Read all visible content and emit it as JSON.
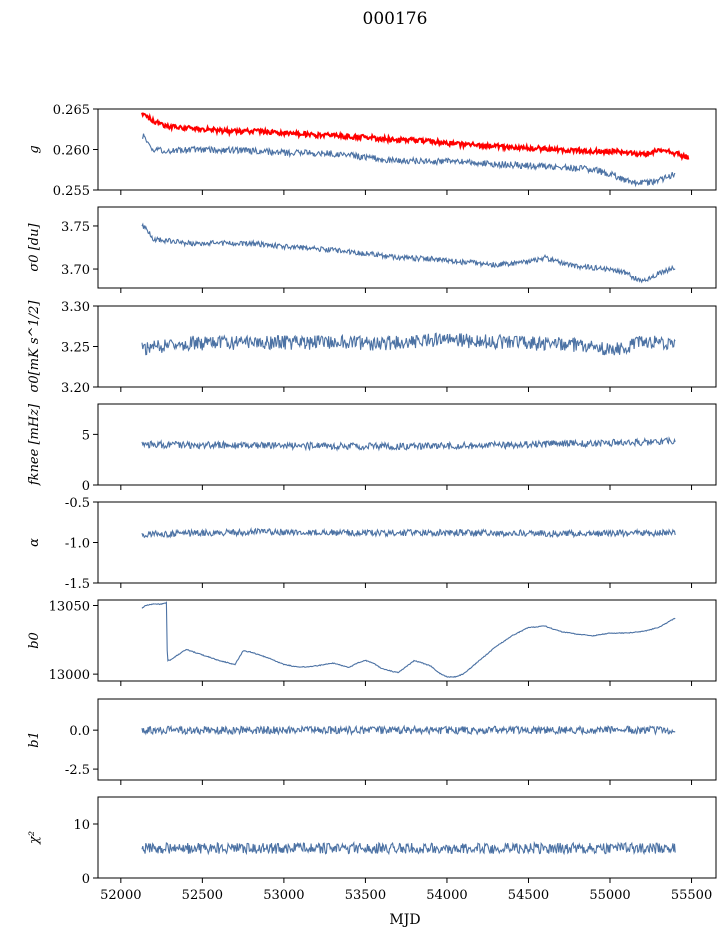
{
  "title": "000176",
  "xlabel": "MJD",
  "x_ticks": [
    "52000",
    "52500",
    "53000",
    "53500",
    "54000",
    "54500",
    "55000",
    "55500"
  ],
  "colors": {
    "series": "#4c72a4",
    "highlight": "#ff0000",
    "axis": "#000000"
  },
  "chart_data": [
    {
      "type": "line",
      "ylabel": "g",
      "ylim": [
        0.255,
        0.265
      ],
      "xlim": [
        51860,
        55650
      ],
      "yticks": [
        "0.255",
        "0.260",
        "0.265"
      ],
      "ytick_values": [
        0.255,
        0.26,
        0.265
      ],
      "series": [
        {
          "color": "#4c72a4",
          "x": [
            52130,
            52200,
            52300,
            52500,
            52700,
            53000,
            53300,
            53600,
            53900,
            54100,
            54300,
            54500,
            54700,
            54900,
            55000,
            55100,
            55200,
            55300,
            55400
          ],
          "y": [
            0.2618,
            0.26,
            0.2598,
            0.26,
            0.2599,
            0.2596,
            0.2595,
            0.2588,
            0.2585,
            0.2585,
            0.2582,
            0.258,
            0.2578,
            0.2575,
            0.257,
            0.2562,
            0.2558,
            0.2562,
            0.257
          ],
          "noise": 0.0004
        },
        {
          "color": "#ff0000",
          "x": [
            52130,
            52200,
            52300,
            52500,
            52700,
            52800,
            53000,
            53300,
            53500,
            53700,
            53900,
            54100,
            54300,
            54500,
            54700,
            54900,
            55100,
            55200,
            55300,
            55400,
            55480
          ],
          "y": [
            0.2645,
            0.2635,
            0.2628,
            0.2625,
            0.2622,
            0.2623,
            0.262,
            0.2617,
            0.2615,
            0.2612,
            0.261,
            0.2606,
            0.2604,
            0.2602,
            0.26,
            0.2598,
            0.2597,
            0.2593,
            0.26,
            0.2595,
            0.259
          ],
          "noise": 0.0003
        }
      ]
    },
    {
      "type": "line",
      "ylabel": "σ0 [du]",
      "ylim": [
        3.678,
        3.772
      ],
      "xlim": [
        51860,
        55650
      ],
      "yticks": [
        "3.70",
        "3.75"
      ],
      "ytick_values": [
        3.7,
        3.75
      ],
      "series": [
        {
          "color": "#4c72a4",
          "x": [
            52130,
            52200,
            52400,
            52800,
            53000,
            53300,
            53500,
            53700,
            53900,
            54100,
            54300,
            54500,
            54600,
            54800,
            55000,
            55100,
            55200,
            55300,
            55400
          ],
          "y": [
            3.752,
            3.735,
            3.73,
            3.73,
            3.726,
            3.722,
            3.718,
            3.713,
            3.712,
            3.708,
            3.705,
            3.708,
            3.713,
            3.703,
            3.7,
            3.695,
            3.685,
            3.695,
            3.702
          ],
          "noise": 0.003
        }
      ]
    },
    {
      "type": "line",
      "ylabel": "σ0[mK s^1/2]",
      "ylim": [
        3.2,
        3.3
      ],
      "xlim": [
        51860,
        55650
      ],
      "yticks": [
        "3.20",
        "3.25",
        "3.30"
      ],
      "ytick_values": [
        3.2,
        3.25,
        3.3
      ],
      "series": [
        {
          "color": "#4c72a4",
          "x": [
            52130,
            52400,
            52800,
            53200,
            53600,
            54000,
            54400,
            54800,
            55000,
            55200,
            55400
          ],
          "y": [
            3.248,
            3.254,
            3.255,
            3.255,
            3.254,
            3.258,
            3.255,
            3.252,
            3.245,
            3.255,
            3.255
          ],
          "noise": 0.009
        }
      ]
    },
    {
      "type": "line",
      "ylabel": "fknee [mHz]",
      "ylim": [
        0,
        8
      ],
      "xlim": [
        51860,
        55650
      ],
      "yticks": [
        "0",
        "5"
      ],
      "ytick_values": [
        0,
        5
      ],
      "series": [
        {
          "color": "#4c72a4",
          "x": [
            52130,
            52800,
            53500,
            54200,
            54800,
            55400
          ],
          "y": [
            4.0,
            3.9,
            3.8,
            3.9,
            4.1,
            4.3
          ],
          "noise": 0.35
        }
      ]
    },
    {
      "type": "line",
      "ylabel": "α",
      "ylim": [
        -1.5,
        -0.5
      ],
      "xlim": [
        51860,
        55650
      ],
      "yticks": [
        "-1.5",
        "-1.0",
        "-0.5"
      ],
      "ytick_values": [
        -1.5,
        -1.0,
        -0.5
      ],
      "series": [
        {
          "color": "#4c72a4",
          "x": [
            52130,
            52800,
            53500,
            54200,
            54800,
            55400
          ],
          "y": [
            -0.9,
            -0.87,
            -0.88,
            -0.88,
            -0.89,
            -0.88
          ],
          "noise": 0.04
        }
      ]
    },
    {
      "type": "line",
      "ylabel": "b0",
      "ylim": [
        12995,
        13054
      ],
      "xlim": [
        51860,
        55650
      ],
      "yticks": [
        "13000",
        "13050"
      ],
      "ytick_values": [
        13000,
        13050
      ],
      "series": [
        {
          "color": "#4c72a4",
          "x": [
            52130,
            52150,
            52200,
            52250,
            52280,
            52285,
            52300,
            52350,
            52400,
            52500,
            52600,
            52700,
            52750,
            52800,
            52900,
            53000,
            53100,
            53200,
            53300,
            53400,
            53450,
            53500,
            53550,
            53600,
            53700,
            53800,
            53900,
            53950,
            54000,
            54050,
            54100,
            54200,
            54300,
            54400,
            54500,
            54600,
            54700,
            54800,
            54900,
            55000,
            55100,
            55200,
            55300,
            55400
          ],
          "y": [
            13048,
            13050,
            13051,
            13051,
            13052,
            13010,
            13010,
            13014,
            13018,
            13014,
            13010,
            13007,
            13017,
            13016,
            13012,
            13007,
            13005,
            13006,
            13008,
            13005,
            13008,
            13010,
            13008,
            13004,
            13001,
            13010,
            13006,
            13001,
            12998,
            12998,
            13000,
            13010,
            13020,
            13028,
            13034,
            13035,
            13031,
            13029,
            13028,
            13030,
            13030,
            13031,
            13034,
            13041
          ],
          "noise": 0.3
        }
      ]
    },
    {
      "type": "line",
      "ylabel": "b1",
      "ylim": [
        -3.2,
        2.0
      ],
      "xlim": [
        51860,
        55650
      ],
      "yticks": [
        "-2.5",
        "0.0"
      ],
      "ytick_values": [
        -2.5,
        0.0
      ],
      "series": [
        {
          "color": "#4c72a4",
          "x": [
            52130,
            52800,
            53500,
            54200,
            54800,
            55400
          ],
          "y": [
            0.0,
            0.0,
            0.0,
            0.0,
            0.0,
            0.0
          ],
          "noise": 0.25
        }
      ]
    },
    {
      "type": "line",
      "ylabel": "χ²",
      "ylim": [
        0,
        15
      ],
      "xlim": [
        51860,
        55650
      ],
      "yticks": [
        "0",
        "10"
      ],
      "ytick_values": [
        0,
        10
      ],
      "series": [
        {
          "color": "#4c72a4",
          "x": [
            52130,
            52800,
            53500,
            54200,
            54800,
            55400
          ],
          "y": [
            5.5,
            5.5,
            5.5,
            5.5,
            5.5,
            5.5
          ],
          "noise": 1.0
        }
      ]
    }
  ]
}
